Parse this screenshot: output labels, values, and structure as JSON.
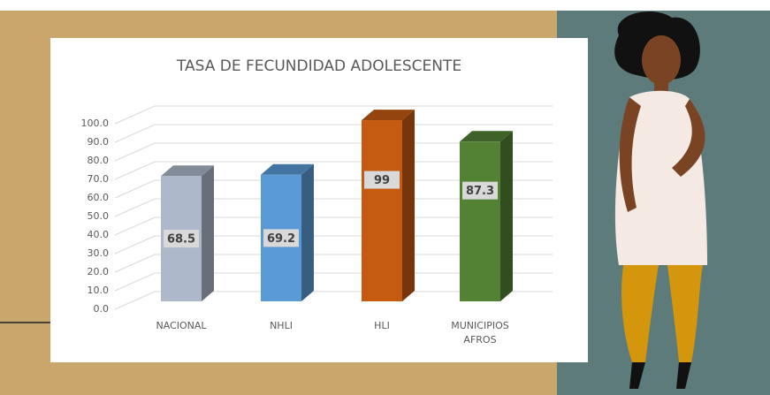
{
  "chart_data": {
    "type": "bar3d",
    "title": "TASA DE FECUNDIDAD ADOLESCENTE",
    "categories": [
      "NACIONAL",
      "NHLI",
      "HLI",
      "MUNICIPIOS AFROS"
    ],
    "values": [
      68.5,
      69.2,
      99,
      87.3
    ],
    "colors": [
      "#adb9ca",
      "#5b9bd5",
      "#c55a11",
      "#548235"
    ],
    "ylim": [
      0,
      100
    ],
    "yticks": [
      {
        "value": 0,
        "label": "0.0"
      },
      {
        "value": 10,
        "label": "10.0"
      },
      {
        "value": 20,
        "label": "20.0"
      },
      {
        "value": 30,
        "label": "30.0"
      },
      {
        "value": 40,
        "label": "40.0"
      },
      {
        "value": 50,
        "label": "50.0"
      },
      {
        "value": 60,
        "label": "60.0"
      },
      {
        "value": 70,
        "label": "70.0"
      },
      {
        "value": 80,
        "label": "80.0"
      },
      {
        "value": 90,
        "label": "90.0"
      },
      {
        "value": 100,
        "label": "100.0"
      }
    ],
    "grid": true
  }
}
